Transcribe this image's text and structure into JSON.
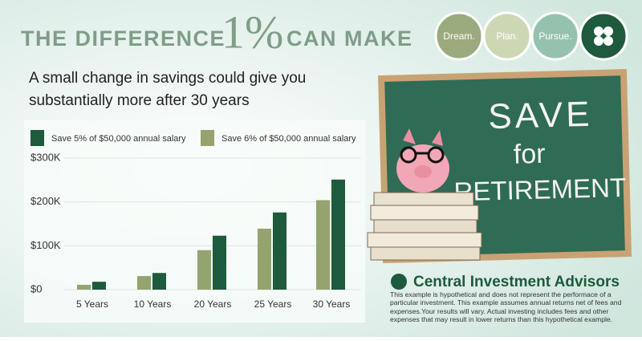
{
  "header": {
    "title_left": "THE DIFFERENCE",
    "title_big": "1%",
    "title_right": "CAN MAKE",
    "subtitle_line1": "A small change in savings could give you",
    "subtitle_line2": "substantially more after 30 years",
    "circles": [
      "Dream.",
      "Plan.",
      "Pursue."
    ]
  },
  "chalkboard": {
    "lines": [
      "SAVE",
      "for",
      "RETIREMENT"
    ]
  },
  "footer": {
    "logo": "Central Investment Advisors",
    "disclaimer": "This example is hypothetical and does not represent the performace of  a particular investment. This example assumes annual returns net of fees and expenses.Your results will vary. Actual investing includes fees and other expenses that may result in lower returns than this hypothetical example."
  },
  "chart_data": {
    "type": "bar",
    "categories": [
      "5 Years",
      "10 Years",
      "20 Years",
      "25 Years",
      "30 Years"
    ],
    "series": [
      {
        "name": "Save 5% of $50,000 annual salary",
        "color": "#1e5a3c",
        "values": [
          18000,
          38000,
          123000,
          176000,
          251000
        ]
      },
      {
        "name": "Save 6% of $50,000 annual salary",
        "color": "#93a46e",
        "values": [
          11000,
          31000,
          90000,
          139000,
          204000
        ]
      }
    ],
    "ylim": [
      0,
      300000
    ],
    "yticks": [
      {
        "value": 0,
        "label": "$0"
      },
      {
        "value": 100000,
        "label": "$100K"
      },
      {
        "value": 200000,
        "label": "$200K"
      },
      {
        "value": 300000,
        "label": "$300K"
      }
    ],
    "grid": true
  }
}
